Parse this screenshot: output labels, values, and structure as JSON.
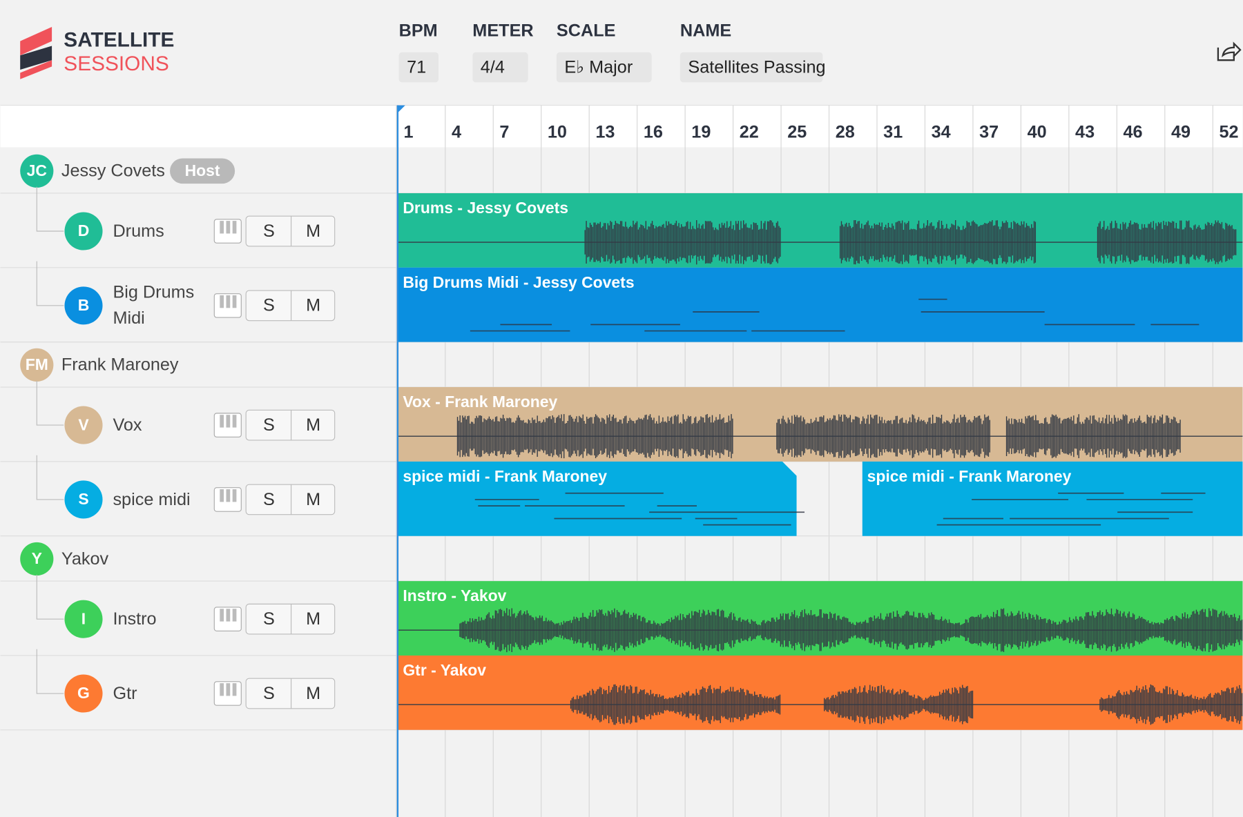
{
  "header": {
    "logo": [
      "SATELLITE",
      "SESSIONS"
    ],
    "fields": [
      {
        "label": "BPM",
        "value": "71"
      },
      {
        "label": "METER",
        "value": "4/4"
      },
      {
        "label": "SCALE",
        "value": "E♭ Major"
      },
      {
        "label": "NAME",
        "value": "Satellites Passing"
      }
    ]
  },
  "ruler": [
    "1",
    "4",
    "7",
    "10",
    "13",
    "16",
    "19",
    "22",
    "25",
    "28",
    "31",
    "34",
    "37",
    "40",
    "43",
    "46",
    "49",
    "52"
  ],
  "buttons": {
    "solo": "S",
    "mute": "M"
  },
  "users": [
    {
      "initials": "JC",
      "name": "Jessy Covets",
      "badge": "Host",
      "tracks": [
        {
          "initial": "D",
          "name": "Drums",
          "clips": [
            "Drums - Jessy Covets"
          ]
        },
        {
          "initial": "B",
          "name": "Big Drums Midi",
          "clips": [
            "Big Drums Midi - Jessy Covets"
          ]
        }
      ]
    },
    {
      "initials": "FM",
      "name": "Frank Maroney",
      "tracks": [
        {
          "initial": "V",
          "name": "Vox",
          "clips": [
            "Vox - Frank Maroney"
          ]
        },
        {
          "initial": "S",
          "name": "spice midi",
          "clips": [
            "spice midi - Frank Maroney",
            "spice midi - Frank Maroney"
          ]
        }
      ]
    },
    {
      "initials": "Y",
      "name": "Yakov",
      "tracks": [
        {
          "initial": "I",
          "name": "Instro",
          "clips": [
            "Instro - Yakov"
          ]
        },
        {
          "initial": "G",
          "name": "Gtr",
          "clips": [
            "Gtr - Yakov"
          ]
        }
      ]
    }
  ]
}
